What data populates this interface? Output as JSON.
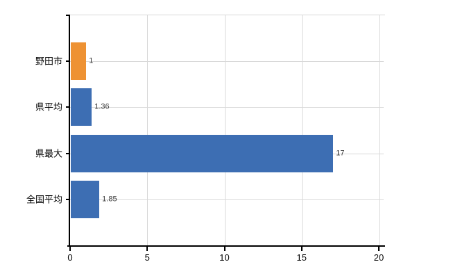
{
  "chart_data": {
    "type": "bar",
    "orientation": "horizontal",
    "title": "",
    "xlabel": "",
    "ylabel": "",
    "categories": [
      "野田市",
      "県平均",
      "県最大",
      "全国平均"
    ],
    "values": [
      1,
      1.36,
      17,
      1.85
    ],
    "value_labels": [
      "1",
      "1.36",
      "17",
      "1.85"
    ],
    "bar_colors": [
      "#ee9233",
      "#3d6eb3",
      "#3d6eb3",
      "#3d6eb3"
    ],
    "xlim": [
      0,
      20
    ],
    "x_ticks": [
      0,
      5,
      10,
      15,
      20
    ],
    "x_tick_labels": [
      "0",
      "5",
      "10",
      "15",
      "20"
    ],
    "grid": "on",
    "legend": "none"
  },
  "colors": {
    "background": "#ffffff",
    "axis": "#000000",
    "grid": "#d9d9d9",
    "category_label": "#000000",
    "tick_label": "#000000",
    "value_label": "#3a3a3a",
    "highlight_bar": "#ee9233",
    "default_bar": "#3d6eb3"
  }
}
